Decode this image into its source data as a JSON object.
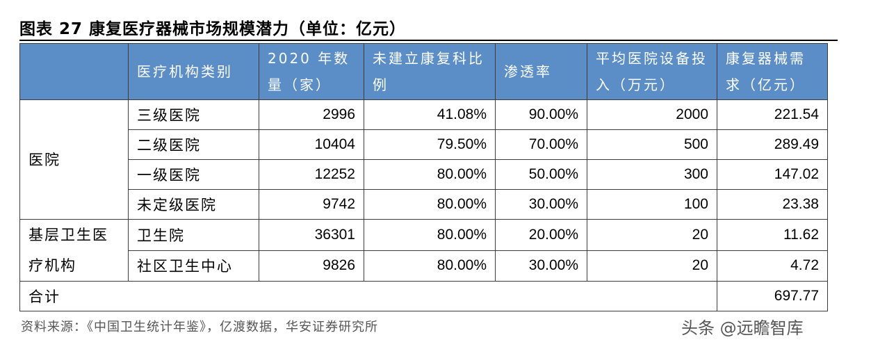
{
  "title": "图表 27 康复医疗器械市场规模潜力（单位：亿元）",
  "headers": [
    "",
    "医疗机构类别",
    "2020 年数量（家）",
    "未建立康复科比例",
    "渗透率",
    "平均医院设备投入（万元）",
    "康复器械需求（亿元）"
  ],
  "groups": {
    "hospital": "医院",
    "primary": "基层卫生医疗机构",
    "total": "合计"
  },
  "rows": [
    {
      "name": "三级医院",
      "count": "2996",
      "ratio": "41.08%",
      "penetration": "90.00%",
      "investment": "2000",
      "demand": "221.54"
    },
    {
      "name": "二级医院",
      "count": "10404",
      "ratio": "79.50%",
      "penetration": "70.00%",
      "investment": "500",
      "demand": "289.49"
    },
    {
      "name": "一级医院",
      "count": "12252",
      "ratio": "80.00%",
      "penetration": "50.00%",
      "investment": "300",
      "demand": "147.02"
    },
    {
      "name": "未定级医院",
      "count": "9742",
      "ratio": "80.00%",
      "penetration": "30.00%",
      "investment": "100",
      "demand": "23.38"
    },
    {
      "name": "卫生院",
      "count": "36301",
      "ratio": "80.00%",
      "penetration": "20.00%",
      "investment": "20",
      "demand": "11.62"
    },
    {
      "name": "社区卫生中心",
      "count": "9826",
      "ratio": "80.00%",
      "penetration": "30.00%",
      "investment": "20",
      "demand": "4.72"
    }
  ],
  "total_demand": "697.77",
  "source": "资料来源：《中国卫生统计年鉴》，亿渡数据，华安证券研究所",
  "watermark": "头条 @远瞻智库",
  "colors": {
    "header_bg": "#5b8ec6",
    "header_text": "#ffffff"
  }
}
